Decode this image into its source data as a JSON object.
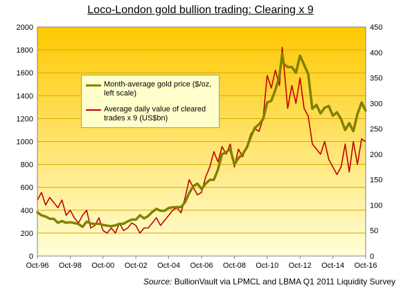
{
  "title": "Loco-London gold bullion trading: Clearing x 9",
  "source": {
    "label": "Source:",
    "text": "BullionVault via LPMCL and LBMA Q1 2011 Liquidity Survey"
  },
  "colors": {
    "gold_line": "#808000",
    "clearing_line": "#c00000",
    "bg_top": "#ffc800",
    "bg_bottom": "#ffffd8",
    "legend_bg": "#ffffcc"
  },
  "legend": [
    {
      "label": "Month-average gold price ($/oz, left scale)",
      "color": "#808000"
    },
    {
      "label": "Average daily value of cleared trades x 9 (US$bn)",
      "color": "#c00000"
    }
  ],
  "chart_data": {
    "type": "line",
    "title": "Loco-London gold bullion trading: Clearing x 9",
    "x_range": [
      "1996-10",
      "2016-10"
    ],
    "x_tick_labels": [
      "Oct-96",
      "Oct-98",
      "Oct-00",
      "Oct-02",
      "Oct-04",
      "Oct-06",
      "Oct-08",
      "Oct-10",
      "Oct-12",
      "Oct-14",
      "Oct-16"
    ],
    "y_left": {
      "range": [
        0,
        2000
      ],
      "ticks": [
        0,
        200,
        400,
        600,
        800,
        1000,
        1200,
        1400,
        1600,
        1800,
        2000
      ]
    },
    "y_right": {
      "range": [
        0,
        450
      ],
      "ticks": [
        0,
        50,
        100,
        150,
        200,
        250,
        300,
        350,
        400,
        450
      ]
    },
    "grid": "horizontal",
    "legend_placement": "upper-left",
    "series": [
      {
        "name": "Month-average gold price ($/oz, left scale)",
        "axis": "left",
        "color": "#808000",
        "x": [
          "1996-10",
          "1997-01",
          "1997-04",
          "1997-07",
          "1997-10",
          "1998-01",
          "1998-04",
          "1998-07",
          "1998-10",
          "1999-01",
          "1999-04",
          "1999-07",
          "1999-10",
          "2000-01",
          "2000-04",
          "2000-07",
          "2000-10",
          "2001-01",
          "2001-04",
          "2001-07",
          "2001-10",
          "2002-01",
          "2002-04",
          "2002-07",
          "2002-10",
          "2003-01",
          "2003-04",
          "2003-07",
          "2003-10",
          "2004-01",
          "2004-04",
          "2004-07",
          "2004-10",
          "2005-01",
          "2005-04",
          "2005-07",
          "2005-10",
          "2006-01",
          "2006-04",
          "2006-07",
          "2006-10",
          "2007-01",
          "2007-04",
          "2007-07",
          "2007-10",
          "2008-01",
          "2008-04",
          "2008-07",
          "2008-10",
          "2009-01",
          "2009-04",
          "2009-07",
          "2009-10",
          "2010-01",
          "2010-04",
          "2010-07",
          "2010-10",
          "2011-01",
          "2011-04",
          "2011-07",
          "2011-09",
          "2011-10",
          "2012-01",
          "2012-04",
          "2012-07",
          "2012-10",
          "2013-01",
          "2013-04",
          "2013-07",
          "2013-10",
          "2014-01",
          "2014-04",
          "2014-07",
          "2014-10",
          "2015-01",
          "2015-04",
          "2015-07",
          "2015-10",
          "2016-01",
          "2016-04",
          "2016-07",
          "2016-10"
        ],
        "values": [
          382,
          355,
          345,
          325,
          325,
          290,
          305,
          290,
          295,
          288,
          280,
          255,
          300,
          285,
          280,
          282,
          272,
          265,
          260,
          268,
          280,
          282,
          302,
          318,
          318,
          355,
          328,
          350,
          385,
          412,
          395,
          395,
          420,
          425,
          428,
          428,
          470,
          550,
          610,
          632,
          585,
          632,
          665,
          665,
          755,
          890,
          905,
          935,
          800,
          855,
          890,
          945,
          1040,
          1120,
          1150,
          1195,
          1340,
          1355,
          1450,
          1575,
          1770,
          1680,
          1650,
          1650,
          1600,
          1750,
          1670,
          1590,
          1285,
          1320,
          1245,
          1295,
          1310,
          1225,
          1255,
          1195,
          1100,
          1160,
          1090,
          1240,
          1340,
          1270
        ]
      },
      {
        "name": "Average daily value of cleared trades x 9 (US$bn)",
        "axis": "right",
        "color": "#c00000",
        "x": [
          "1996-10",
          "1997-01",
          "1997-04",
          "1997-07",
          "1997-10",
          "1998-01",
          "1998-04",
          "1998-07",
          "1998-10",
          "1999-01",
          "1999-04",
          "1999-07",
          "1999-10",
          "2000-01",
          "2000-04",
          "2000-07",
          "2000-10",
          "2001-01",
          "2001-04",
          "2001-07",
          "2001-10",
          "2002-01",
          "2002-04",
          "2002-07",
          "2002-10",
          "2003-01",
          "2003-04",
          "2003-07",
          "2003-10",
          "2004-01",
          "2004-04",
          "2004-07",
          "2004-10",
          "2005-01",
          "2005-04",
          "2005-07",
          "2005-10",
          "2006-01",
          "2006-04",
          "2006-07",
          "2006-10",
          "2007-01",
          "2007-04",
          "2007-07",
          "2007-10",
          "2008-01",
          "2008-04",
          "2008-07",
          "2008-10",
          "2009-01",
          "2009-04",
          "2009-07",
          "2009-10",
          "2010-01",
          "2010-04",
          "2010-07",
          "2010-10",
          "2011-01",
          "2011-04",
          "2011-07",
          "2011-09",
          "2011-10",
          "2012-01",
          "2012-04",
          "2012-07",
          "2012-10",
          "2013-01",
          "2013-04",
          "2013-07",
          "2013-10",
          "2014-01",
          "2014-04",
          "2014-07",
          "2014-10",
          "2015-01",
          "2015-04",
          "2015-07",
          "2015-10",
          "2016-01",
          "2016-04",
          "2016-07",
          "2016-10"
        ],
        "values": [
          110,
          125,
          100,
          115,
          105,
          95,
          110,
          80,
          90,
          75,
          65,
          80,
          90,
          55,
          60,
          75,
          50,
          45,
          55,
          45,
          65,
          50,
          55,
          65,
          60,
          45,
          55,
          55,
          65,
          75,
          60,
          70,
          80,
          90,
          95,
          85,
          115,
          150,
          135,
          120,
          125,
          155,
          175,
          205,
          185,
          215,
          200,
          220,
          175,
          210,
          195,
          215,
          240,
          250,
          245,
          270,
          355,
          330,
          365,
          335,
          410,
          380,
          290,
          335,
          300,
          350,
          290,
          275,
          220,
          210,
          200,
          225,
          190,
          175,
          160,
          175,
          220,
          165,
          225,
          180,
          230,
          225
        ]
      }
    ]
  }
}
